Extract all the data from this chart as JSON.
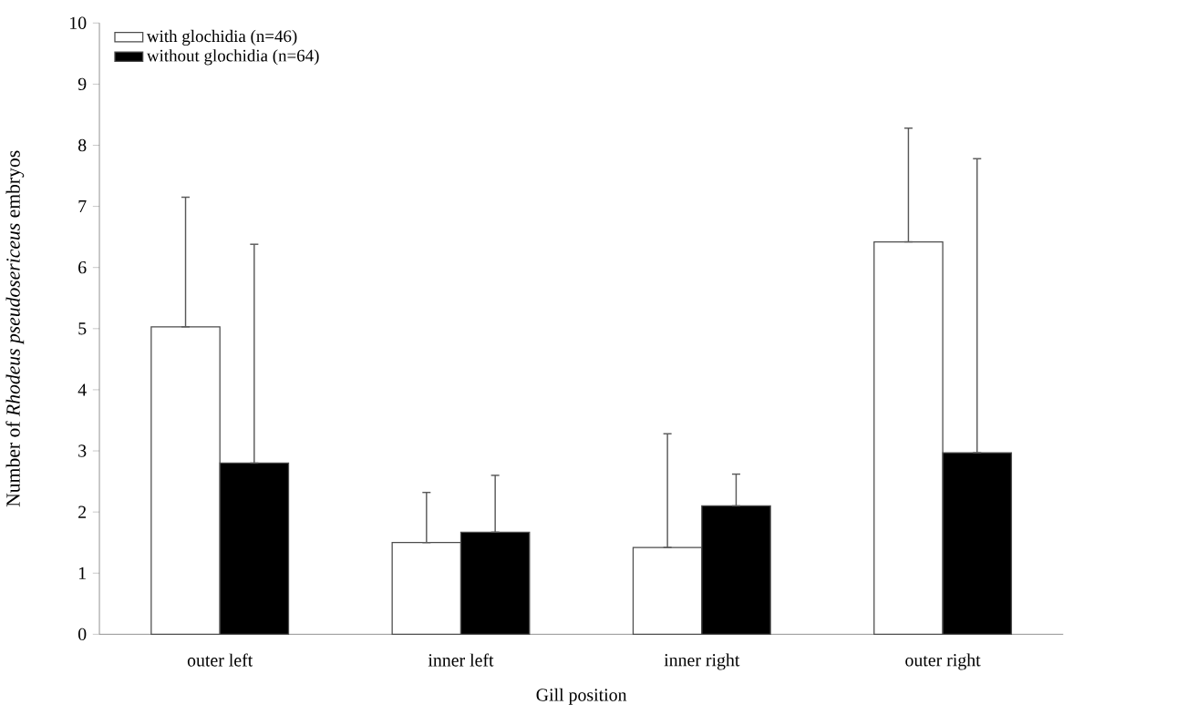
{
  "chart_data": {
    "type": "bar",
    "xlabel": "Gill position",
    "ylabel": "Number of *Rhodeus pseudosericeus* embryos",
    "categories": [
      "outer left",
      "inner left",
      "inner right",
      "outer right"
    ],
    "series": [
      {
        "name": "with glochidia (n=46)",
        "color": "#ffffff",
        "values": [
          5.03,
          1.5,
          1.42,
          6.42
        ],
        "errors": [
          [
            5.03,
            7.15
          ],
          [
            1.5,
            2.32
          ],
          [
            1.42,
            3.28
          ],
          [
            6.42,
            8.28
          ]
        ]
      },
      {
        "name": "without glochidia (n=64)",
        "color": "#000000",
        "values": [
          2.8,
          1.67,
          2.1,
          2.97
        ],
        "errors": [
          [
            2.8,
            6.38
          ],
          [
            1.67,
            2.6
          ],
          [
            2.1,
            2.62
          ],
          [
            2.97,
            7.78
          ]
        ]
      }
    ],
    "ylim": [
      0,
      10
    ],
    "yticks": [
      0,
      1,
      2,
      3,
      4,
      5,
      6,
      7,
      8,
      9,
      10
    ],
    "grid": false,
    "legend": "top left"
  }
}
